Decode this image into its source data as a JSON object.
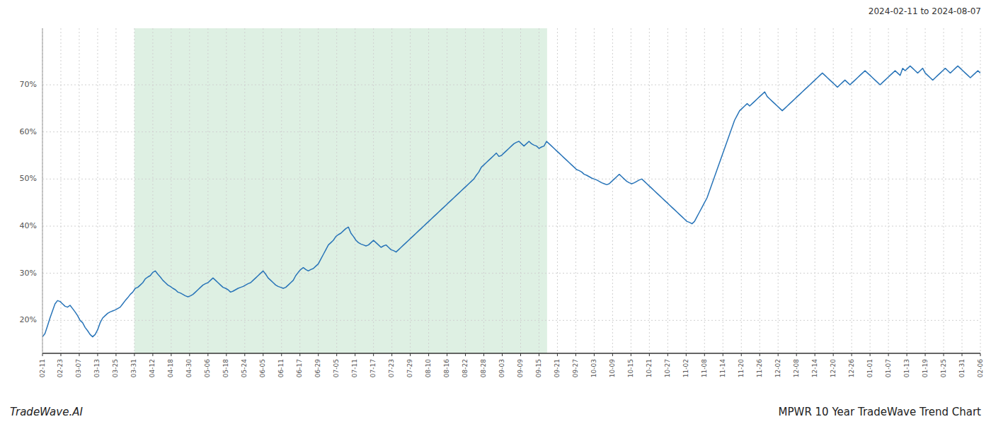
{
  "chart_data": {
    "type": "line",
    "title": "MPWR 10 Year TradeWave Trend Chart",
    "subtitle": "2024-02-11 to 2024-08-07",
    "annotations": [
      "TradeWave.AI"
    ],
    "color": "#2874b8",
    "grid": true,
    "shade": {
      "x_start": 36.652,
      "x_end": 201.212,
      "color": "#cce8d4"
    },
    "xlim": [
      0,
      374
    ],
    "xticks": [
      {
        "value": 0,
        "label": "02-11"
      },
      {
        "value": 7.3333333333,
        "label": "02-23"
      },
      {
        "value": 14.6666666667,
        "label": "03-07"
      },
      {
        "value": 22,
        "label": "03-13"
      },
      {
        "value": 29.3333333333,
        "label": "03-25"
      },
      {
        "value": 36.6666666667,
        "label": "03-31"
      },
      {
        "value": 44,
        "label": "04-12"
      },
      {
        "value": 51.3333333333,
        "label": "04-18"
      },
      {
        "value": 58.6666666667,
        "label": "04-30"
      },
      {
        "value": 66,
        "label": "05-06"
      },
      {
        "value": 73.3333333333,
        "label": "05-18"
      },
      {
        "value": 80.6666666667,
        "label": "05-24"
      },
      {
        "value": 88,
        "label": "06-05"
      },
      {
        "value": 95.3333333333,
        "label": "06-11"
      },
      {
        "value": 102.6666666667,
        "label": "06-17"
      },
      {
        "value": 110,
        "label": "06-29"
      },
      {
        "value": 117.3333333333,
        "label": "07-05"
      },
      {
        "value": 124.6666666667,
        "label": "07-11"
      },
      {
        "value": 132,
        "label": "07-17"
      },
      {
        "value": 139.3333333333,
        "label": "07-23"
      },
      {
        "value": 146.6666666667,
        "label": "07-29"
      },
      {
        "value": 154,
        "label": "08-10"
      },
      {
        "value": 161.3333333333,
        "label": "08-16"
      },
      {
        "value": 168.6666666667,
        "label": "08-22"
      },
      {
        "value": 176,
        "label": "08-28"
      },
      {
        "value": 183.3333333333,
        "label": "09-03"
      },
      {
        "value": 190.6666666667,
        "label": "09-09"
      },
      {
        "value": 198,
        "label": "09-15"
      },
      {
        "value": 205.3333333333,
        "label": "09-21"
      },
      {
        "value": 212.6666666667,
        "label": "09-27"
      },
      {
        "value": 220,
        "label": "10-03"
      },
      {
        "value": 227.3333333333,
        "label": "10-09"
      },
      {
        "value": 234.6666666667,
        "label": "10-15"
      },
      {
        "value": 242,
        "label": "10-21"
      },
      {
        "value": 249.3333333333,
        "label": "10-27"
      },
      {
        "value": 256.6666666667,
        "label": "11-02"
      },
      {
        "value": 264,
        "label": "11-08"
      },
      {
        "value": 271.3333333333,
        "label": "11-14"
      },
      {
        "value": 278.6666666667,
        "label": "11-20"
      },
      {
        "value": 286,
        "label": "11-26"
      },
      {
        "value": 293.3333333333,
        "label": "12-02"
      },
      {
        "value": 300.6666666667,
        "label": "12-08"
      },
      {
        "value": 308,
        "label": "12-14"
      },
      {
        "value": 315.3333333333,
        "label": "12-20"
      },
      {
        "value": 322.6666666667,
        "label": "12-26"
      },
      {
        "value": 330,
        "label": "01-01"
      },
      {
        "value": 337.3333333333,
        "label": "01-07"
      },
      {
        "value": 344.6666666667,
        "label": "01-13"
      },
      {
        "value": 352,
        "label": "01-19"
      },
      {
        "value": 359.3333333333,
        "label": "01-25"
      },
      {
        "value": 366.6666666667,
        "label": "01-31"
      },
      {
        "value": 374,
        "label": "02-06"
      }
    ],
    "ylim": [
      13,
      82
    ],
    "yticks": [
      {
        "value": 20,
        "label": "20%"
      },
      {
        "value": 30,
        "label": "30%"
      },
      {
        "value": 40,
        "label": "40%"
      },
      {
        "value": 50,
        "label": "50%"
      },
      {
        "value": 60,
        "label": "60%"
      },
      {
        "value": 70,
        "label": "70%"
      }
    ],
    "values": [
      16.5,
      17.2,
      18.8,
      20.5,
      22.0,
      23.5,
      24.2,
      24.0,
      23.5,
      23.0,
      22.8,
      23.2,
      22.5,
      21.8,
      21.0,
      20.0,
      19.5,
      18.5,
      17.8,
      17.0,
      16.5,
      17.0,
      18.0,
      19.5,
      20.5,
      21.0,
      21.5,
      21.8,
      22.0,
      22.2,
      22.5,
      22.8,
      23.5,
      24.2,
      24.8,
      25.5,
      26.0,
      26.8,
      27.0,
      27.5,
      28.0,
      28.8,
      29.2,
      29.5,
      30.2,
      30.5,
      29.8,
      29.2,
      28.5,
      28.0,
      27.5,
      27.2,
      26.8,
      26.5,
      26.0,
      25.8,
      25.5,
      25.2,
      25.0,
      25.2,
      25.5,
      26.0,
      26.5,
      27.0,
      27.5,
      27.8,
      28.0,
      28.5,
      29.0,
      28.5,
      28.0,
      27.5,
      27.0,
      26.8,
      26.5,
      26.0,
      26.2,
      26.5,
      26.8,
      27.0,
      27.2,
      27.5,
      27.8,
      28.0,
      28.5,
      29.0,
      29.5,
      30.0,
      30.5,
      29.8,
      29.0,
      28.5,
      28.0,
      27.5,
      27.2,
      27.0,
      26.8,
      27.0,
      27.5,
      28.0,
      28.5,
      29.5,
      30.2,
      30.8,
      31.2,
      30.8,
      30.5,
      30.8,
      31.0,
      31.5,
      32.0,
      33.0,
      34.0,
      35.0,
      36.0,
      36.5,
      37.0,
      37.8,
      38.2,
      38.5,
      39.0,
      39.5,
      39.8,
      38.5,
      37.8,
      37.0,
      36.5,
      36.2,
      36.0,
      35.8,
      36.0,
      36.5,
      37.0,
      36.5,
      36.0,
      35.5,
      35.8,
      36.0,
      35.5,
      35.0,
      34.8,
      34.5,
      35.0,
      35.5,
      36.0,
      36.5,
      37.0,
      37.5,
      38.0,
      38.5,
      39.0,
      39.5,
      40.0,
      40.5,
      41.0,
      41.5,
      42.0,
      42.5,
      43.0,
      43.5,
      44.0,
      44.5,
      45.0,
      45.5,
      46.0,
      46.5,
      47.0,
      47.5,
      48.0,
      48.5,
      49.0,
      49.5,
      50.0,
      50.8,
      51.5,
      52.5,
      53.0,
      53.5,
      54.0,
      54.5,
      55.0,
      55.5,
      54.8,
      55.0,
      55.5,
      56.0,
      56.5,
      57.0,
      57.5,
      57.8,
      58.0,
      57.5,
      57.0,
      57.5,
      58.0,
      57.5,
      57.2,
      57.0,
      56.5,
      56.8,
      57.0,
      58.0,
      57.5,
      57.0,
      56.5,
      56.0,
      55.5,
      55.0,
      54.5,
      54.0,
      53.5,
      53.0,
      52.5,
      52.0,
      51.8,
      51.5,
      51.0,
      50.8,
      50.5,
      50.2,
      50.0,
      49.8,
      49.5,
      49.2,
      49.0,
      48.8,
      49.0,
      49.5,
      50.0,
      50.5,
      51.0,
      50.5,
      50.0,
      49.5,
      49.2,
      49.0,
      49.2,
      49.5,
      49.8,
      50.0,
      49.5,
      49.0,
      48.5,
      48.0,
      47.5,
      47.0,
      46.5,
      46.0,
      45.5,
      45.0,
      44.5,
      44.0,
      43.5,
      43.0,
      42.5,
      42.0,
      41.5,
      41.0,
      40.8,
      40.5,
      41.0,
      42.0,
      43.0,
      44.0,
      45.0,
      46.0,
      47.5,
      49.0,
      50.5,
      52.0,
      53.5,
      55.0,
      56.5,
      58.0,
      59.5,
      61.0,
      62.5,
      63.5,
      64.5,
      65.0,
      65.5,
      66.0,
      65.5,
      66.0,
      66.5,
      67.0,
      67.5,
      68.0,
      68.5,
      67.5,
      67.0,
      66.5,
      66.0,
      65.5,
      65.0,
      64.5,
      65.0,
      65.5,
      66.0,
      66.5,
      67.0,
      67.5,
      68.0,
      68.5,
      69.0,
      69.5,
      70.0,
      70.5,
      71.0,
      71.5,
      72.0,
      72.5,
      72.0,
      71.5,
      71.0,
      70.5,
      70.0,
      69.5,
      70.0,
      70.5,
      71.0,
      70.5,
      70.0,
      70.5,
      71.0,
      71.5,
      72.0,
      72.5,
      73.0,
      72.5,
      72.0,
      71.5,
      71.0,
      70.5,
      70.0,
      70.5,
      71.0,
      71.5,
      72.0,
      72.5,
      73.0,
      72.5,
      72.0,
      73.5,
      73.0,
      73.5,
      74.0,
      73.5,
      73.0,
      72.5,
      73.0,
      73.5,
      72.5,
      72.0,
      71.5,
      71.0,
      71.5,
      72.0,
      72.5,
      73.0,
      73.5,
      73.0,
      72.5,
      73.0,
      73.5,
      74.0,
      73.5,
      73.0,
      72.5,
      72.0,
      71.5,
      72.0,
      72.5,
      73.0,
      72.5
    ]
  }
}
